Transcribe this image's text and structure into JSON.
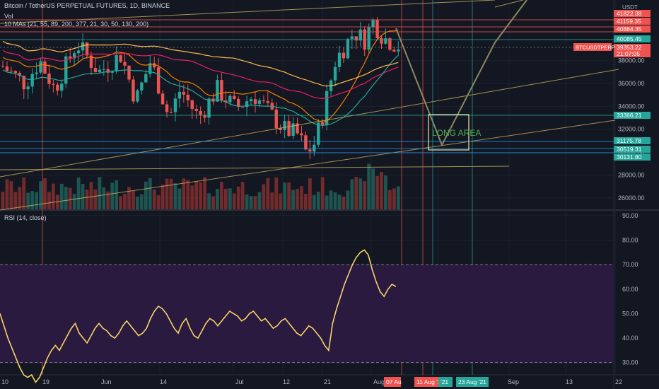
{
  "header": {
    "symbol_line": "Bitcoin / TetherUS PERPETUAL FUTURES, 1D, BINANCE",
    "vol_label": "Vol",
    "ma_label": "10 MAs (21, 55, 89, 200, 377, 21, 30, 50, 130, 200)",
    "rsi_label": "RSI (14, close)"
  },
  "annotation": {
    "long_area": "LONG AREA"
  },
  "chart_data": [
    {
      "type": "candlestick",
      "currency": "USDT",
      "price_axis_ticks": [
        26000,
        28000,
        30000,
        32000,
        34000,
        36000,
        38000
      ],
      "price_range": [
        25000,
        42800
      ],
      "x_axis_labels": [
        "10",
        "19",
        "Jun",
        "14",
        "Jul",
        "12",
        "21",
        "Aug",
        "13",
        "22"
      ],
      "x_axis_date_labels": [
        "07 Au",
        "11 Aug '21",
        "'21",
        "23 Aug '21",
        "Sep"
      ],
      "price_tags": [
        {
          "label": "41822.38",
          "color": "#ef5350"
        },
        {
          "label": "41159.35",
          "color": "#ef5350"
        },
        {
          "label": "40884.35",
          "color": "#ef5350"
        },
        {
          "label": "40085.45",
          "color": "#26a69a"
        },
        {
          "label": "39353.22",
          "color": "#ef5350"
        },
        {
          "label": "21:07:05",
          "color": "#ef5350"
        },
        {
          "label": "33366.21",
          "color": "#26a69a"
        },
        {
          "label": "31175.78",
          "color": "#26a69a"
        },
        {
          "label": "30519.31",
          "color": "#26a69a"
        },
        {
          "label": "30131.80",
          "color": "#26a69a"
        }
      ],
      "symbol_tag": "BTCUSDTPERP",
      "last_price": 39353.22,
      "colors": {
        "up": "#26a69a",
        "down": "#ef5350",
        "background": "#131722"
      }
    },
    {
      "type": "line",
      "name": "RSI (14, close)",
      "y_ticks": [
        30,
        40,
        50,
        60,
        70,
        80,
        90
      ],
      "ylim": [
        25,
        92
      ],
      "overbought": 70,
      "oversold": 30,
      "values": [
        50,
        45,
        40,
        36,
        32,
        28,
        25,
        24,
        25,
        22,
        24,
        28,
        32,
        35,
        37,
        35,
        38,
        41,
        44,
        46,
        42,
        40,
        38,
        41,
        44,
        46,
        44,
        43,
        41,
        40,
        42,
        45,
        47,
        45,
        43,
        41,
        42,
        44,
        48,
        51,
        53,
        52,
        50,
        47,
        44,
        42,
        46,
        48,
        44,
        41,
        40,
        43,
        46,
        48,
        47,
        45,
        47,
        49,
        51,
        50,
        49,
        47,
        48,
        50,
        51,
        49,
        47,
        48,
        46,
        44,
        45,
        47,
        48,
        46,
        44,
        42,
        41,
        43,
        45,
        44,
        42,
        40,
        37,
        35,
        46,
        52,
        57,
        62,
        66,
        70,
        73,
        75,
        76,
        74,
        68,
        63,
        59,
        57,
        60,
        62,
        61
      ]
    }
  ]
}
